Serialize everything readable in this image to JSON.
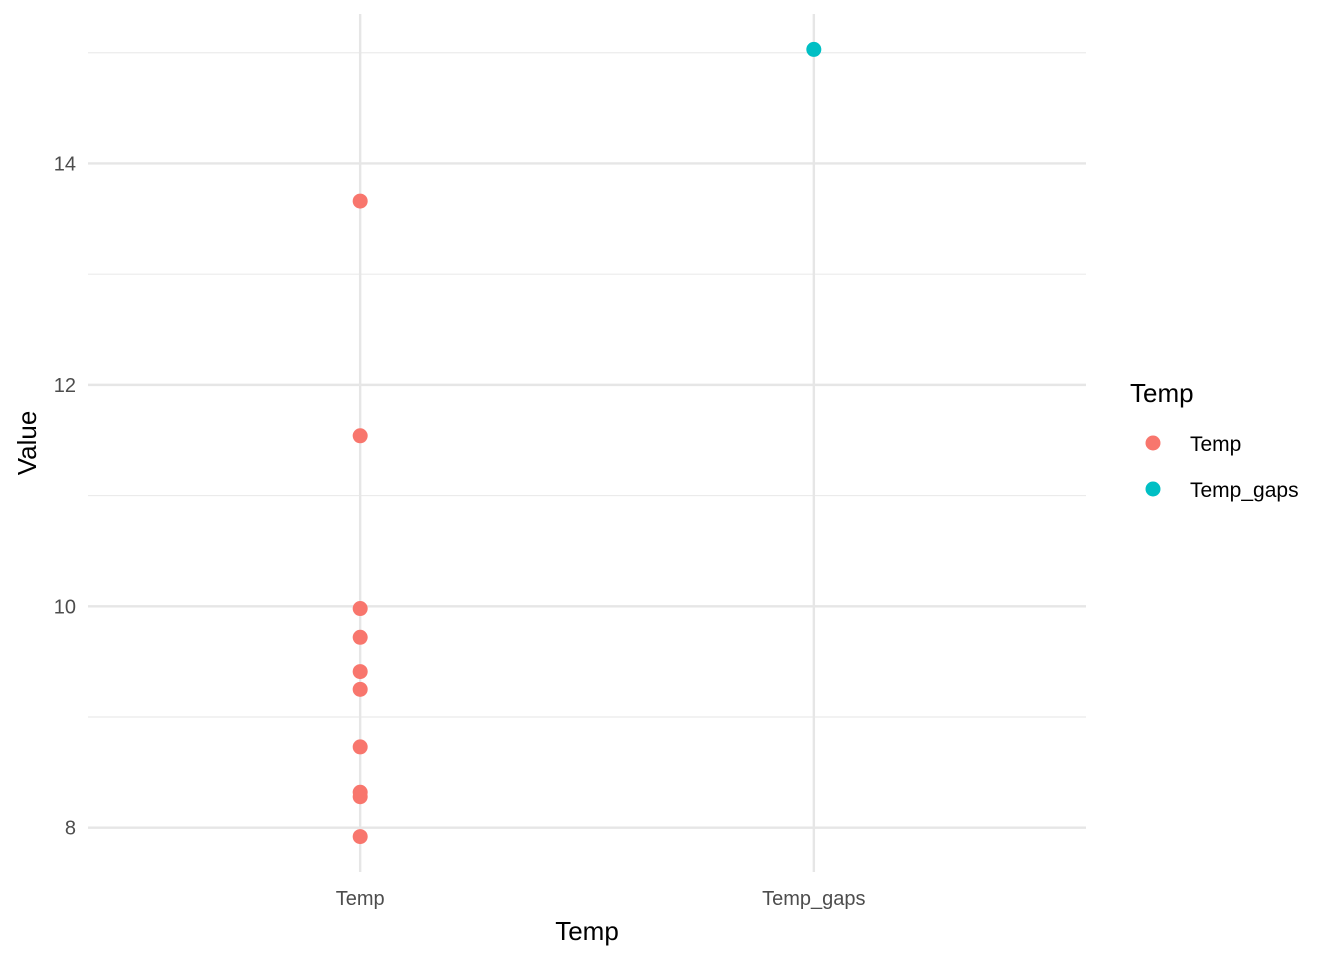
{
  "chart_data": {
    "type": "scatter",
    "title": "",
    "xlabel": "Temp",
    "ylabel": "Value",
    "categories": [
      "Temp",
      "Temp_gaps"
    ],
    "y_ticks": [
      8,
      10,
      12,
      14
    ],
    "y_tick_labels": [
      "8",
      "10",
      "12",
      "14"
    ],
    "ylim": [
      7.6,
      15.35
    ],
    "grid": true,
    "legend": {
      "title": "Temp",
      "placement": "right",
      "entries": [
        "Temp",
        "Temp_gaps"
      ]
    },
    "series": [
      {
        "name": "Temp",
        "color": "#F8766D",
        "x": [
          "Temp",
          "Temp",
          "Temp",
          "Temp",
          "Temp",
          "Temp",
          "Temp",
          "Temp",
          "Temp",
          "Temp"
        ],
        "values": [
          13.66,
          11.54,
          9.98,
          9.72,
          9.41,
          9.25,
          8.73,
          8.32,
          8.28,
          7.92
        ]
      },
      {
        "name": "Temp_gaps",
        "color": "#00BFC4",
        "x": [
          "Temp_gaps"
        ],
        "values": [
          15.03
        ]
      }
    ]
  }
}
